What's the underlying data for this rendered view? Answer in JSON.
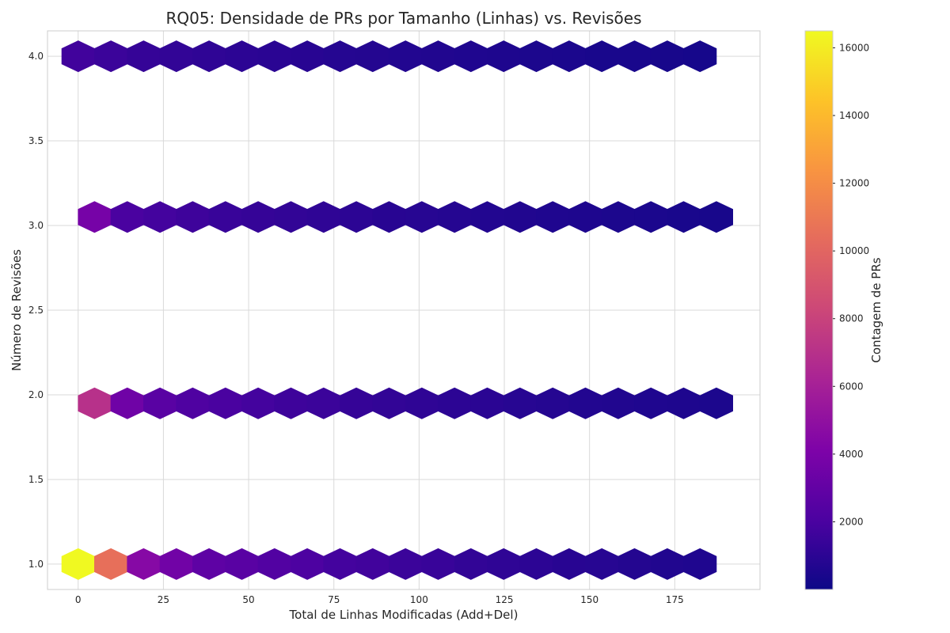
{
  "chart_data": {
    "type": "heatmap",
    "subtype": "hexbin",
    "title": "RQ05: Densidade de PRs por Tamanho (Linhas) vs. Revisões",
    "xlabel": "Total de Linhas Modificadas (Add+Del)",
    "ylabel": "Número de Revisões",
    "xlim": [
      -9,
      200
    ],
    "ylim": [
      0.85,
      4.15
    ],
    "xticks": [
      0,
      25,
      50,
      75,
      100,
      125,
      150,
      175
    ],
    "yticks": [
      1.0,
      1.5,
      2.0,
      2.5,
      3.0,
      3.5,
      4.0
    ],
    "xtick_labels": [
      "0",
      "25",
      "50",
      "75",
      "100",
      "125",
      "150",
      "175"
    ],
    "ytick_labels": [
      "1.0",
      "1.5",
      "2.0",
      "2.5",
      "3.0",
      "3.5",
      "4.0"
    ],
    "grid": true,
    "colormap": "plasma",
    "colorbar": {
      "label": "Contagem de PRs",
      "range": [
        1,
        16500
      ],
      "ticks": [
        2000,
        4000,
        6000,
        8000,
        10000,
        12000,
        14000,
        16000
      ],
      "tick_labels": [
        "2000",
        "4000",
        "6000",
        "8000",
        "10000",
        "12000",
        "14000",
        "16000"
      ]
    },
    "hex_dx": 9.6,
    "rows": [
      {
        "y": 1.0,
        "x_start": 0,
        "counts": [
          16500,
          10500,
          4500,
          3600,
          2800,
          2600,
          2300,
          2100,
          1800,
          1700,
          1500,
          1400,
          1200,
          1100,
          1000,
          900,
          850,
          750,
          650,
          600
        ]
      },
      {
        "y": 1.95,
        "x_start": 4.8,
        "counts": [
          7000,
          3500,
          2600,
          2200,
          2000,
          1800,
          1600,
          1500,
          1300,
          1200,
          1100,
          1000,
          950,
          850,
          800,
          700,
          650,
          600,
          550,
          500
        ]
      },
      {
        "y": 3.05,
        "x_start": 4.8,
        "counts": [
          3800,
          2000,
          1800,
          1600,
          1400,
          1300,
          1200,
          1100,
          1000,
          900,
          850,
          800,
          700,
          650,
          600,
          550,
          500,
          450,
          400,
          350
        ]
      },
      {
        "y": 4.0,
        "x_start": 0,
        "counts": [
          1700,
          1500,
          1300,
          1200,
          1100,
          1000,
          950,
          900,
          800,
          750,
          700,
          650,
          600,
          550,
          500,
          450,
          400,
          400,
          350,
          300
        ]
      }
    ]
  }
}
